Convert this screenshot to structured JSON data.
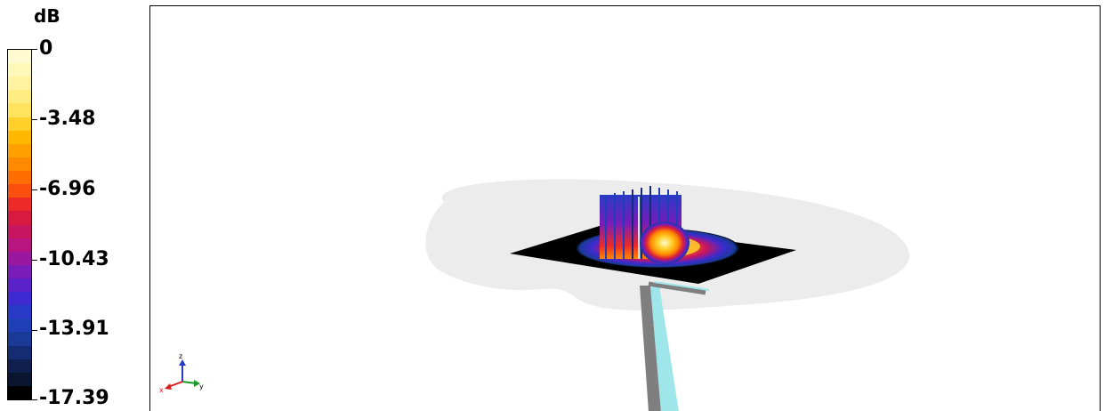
{
  "colorbar": {
    "unit": "dB",
    "labels": [
      "0",
      "-3.48",
      "-6.96",
      "-10.43",
      "-13.91",
      "-17.39"
    ],
    "range": [
      -17.39,
      0
    ],
    "colors": [
      "#fffbd0",
      "#fff8b8",
      "#fff3a0",
      "#ffec80",
      "#ffe35c",
      "#ffd02a",
      "#ffb800",
      "#ffa000",
      "#ff8a00",
      "#ff6e00",
      "#fb4f10",
      "#ee2a28",
      "#d81a40",
      "#c81560",
      "#b81580",
      "#9a18a0",
      "#7a1cb8",
      "#5a22c8",
      "#3e2ad0",
      "#2a3ac8",
      "#1f3fb8",
      "#1a3a98",
      "#152c74",
      "#10204e",
      "#0a1530",
      "#000000"
    ]
  },
  "view": {
    "axis_triad": {
      "x_label": "x",
      "y_label": "y",
      "z_label": "z"
    }
  }
}
